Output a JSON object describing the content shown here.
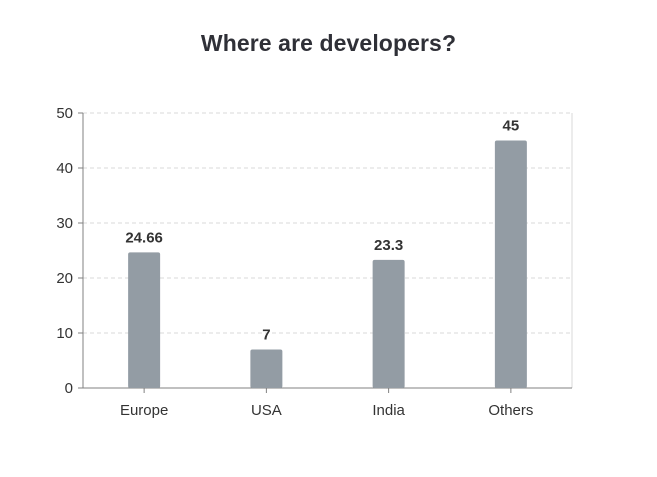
{
  "chart_data": {
    "type": "bar",
    "title": "Where are developers?",
    "categories": [
      "Europe",
      "USA",
      "India",
      "Others"
    ],
    "values": [
      24.66,
      7,
      23.3,
      45
    ],
    "value_labels": [
      "24.66",
      "7",
      "23.3",
      "45"
    ],
    "xlabel": "",
    "ylabel": "",
    "ylim": [
      0,
      50
    ],
    "yticks": [
      0,
      10,
      20,
      30,
      40,
      50
    ],
    "grid": true,
    "legend": "none",
    "colors": {
      "bar": "#939ca4",
      "axis": "#808080",
      "grid": "#d8d8d8",
      "text": "#333333",
      "title": "#2f3037"
    }
  }
}
